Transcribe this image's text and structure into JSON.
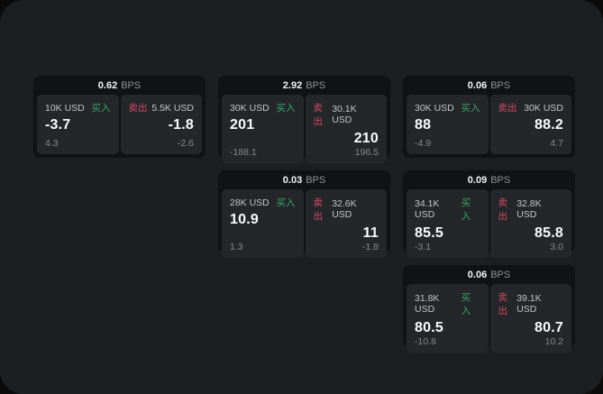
{
  "labels": {
    "bps_unit": "BPS",
    "buy": "买入",
    "sell": "卖出"
  },
  "colors": {
    "buy_green": "#3ca46b",
    "sell_red": "#d04a66",
    "panel_bg": "#1d1e20",
    "card_bg": "#111214",
    "tile_bg": "#242629"
  },
  "cards": [
    {
      "bps": "0.62",
      "buy": {
        "amount": "10K USD",
        "value": "-3.7",
        "sub": "4.3"
      },
      "sell": {
        "amount": "5.5K USD",
        "value": "-1.8",
        "sub": "-2.6"
      }
    },
    {
      "bps": "2.92",
      "buy": {
        "amount": "30K USD",
        "value": "201",
        "sub": "-188.1"
      },
      "sell": {
        "amount": "30.1K USD",
        "value": "210",
        "sub": "196.5"
      }
    },
    {
      "bps": "0.06",
      "buy": {
        "amount": "30K USD",
        "value": "88",
        "sub": "-4.9"
      },
      "sell": {
        "amount": "30K USD",
        "value": "88.2",
        "sub": "4.7"
      }
    },
    {
      "bps": "0.03",
      "buy": {
        "amount": "28K USD",
        "value": "10.9",
        "sub": "1.3"
      },
      "sell": {
        "amount": "32.6K USD",
        "value": "11",
        "sub": "-1.8"
      }
    },
    {
      "bps": "0.09",
      "buy": {
        "amount": "34.1K USD",
        "value": "85.5",
        "sub": "-3.1"
      },
      "sell": {
        "amount": "32.8K USD",
        "value": "85.8",
        "sub": "3.0"
      }
    },
    {
      "bps": "0.06",
      "buy": {
        "amount": "31.8K USD",
        "value": "80.5",
        "sub": "-10.8"
      },
      "sell": {
        "amount": "39.1K USD",
        "value": "80.7",
        "sub": "10.2"
      }
    }
  ]
}
